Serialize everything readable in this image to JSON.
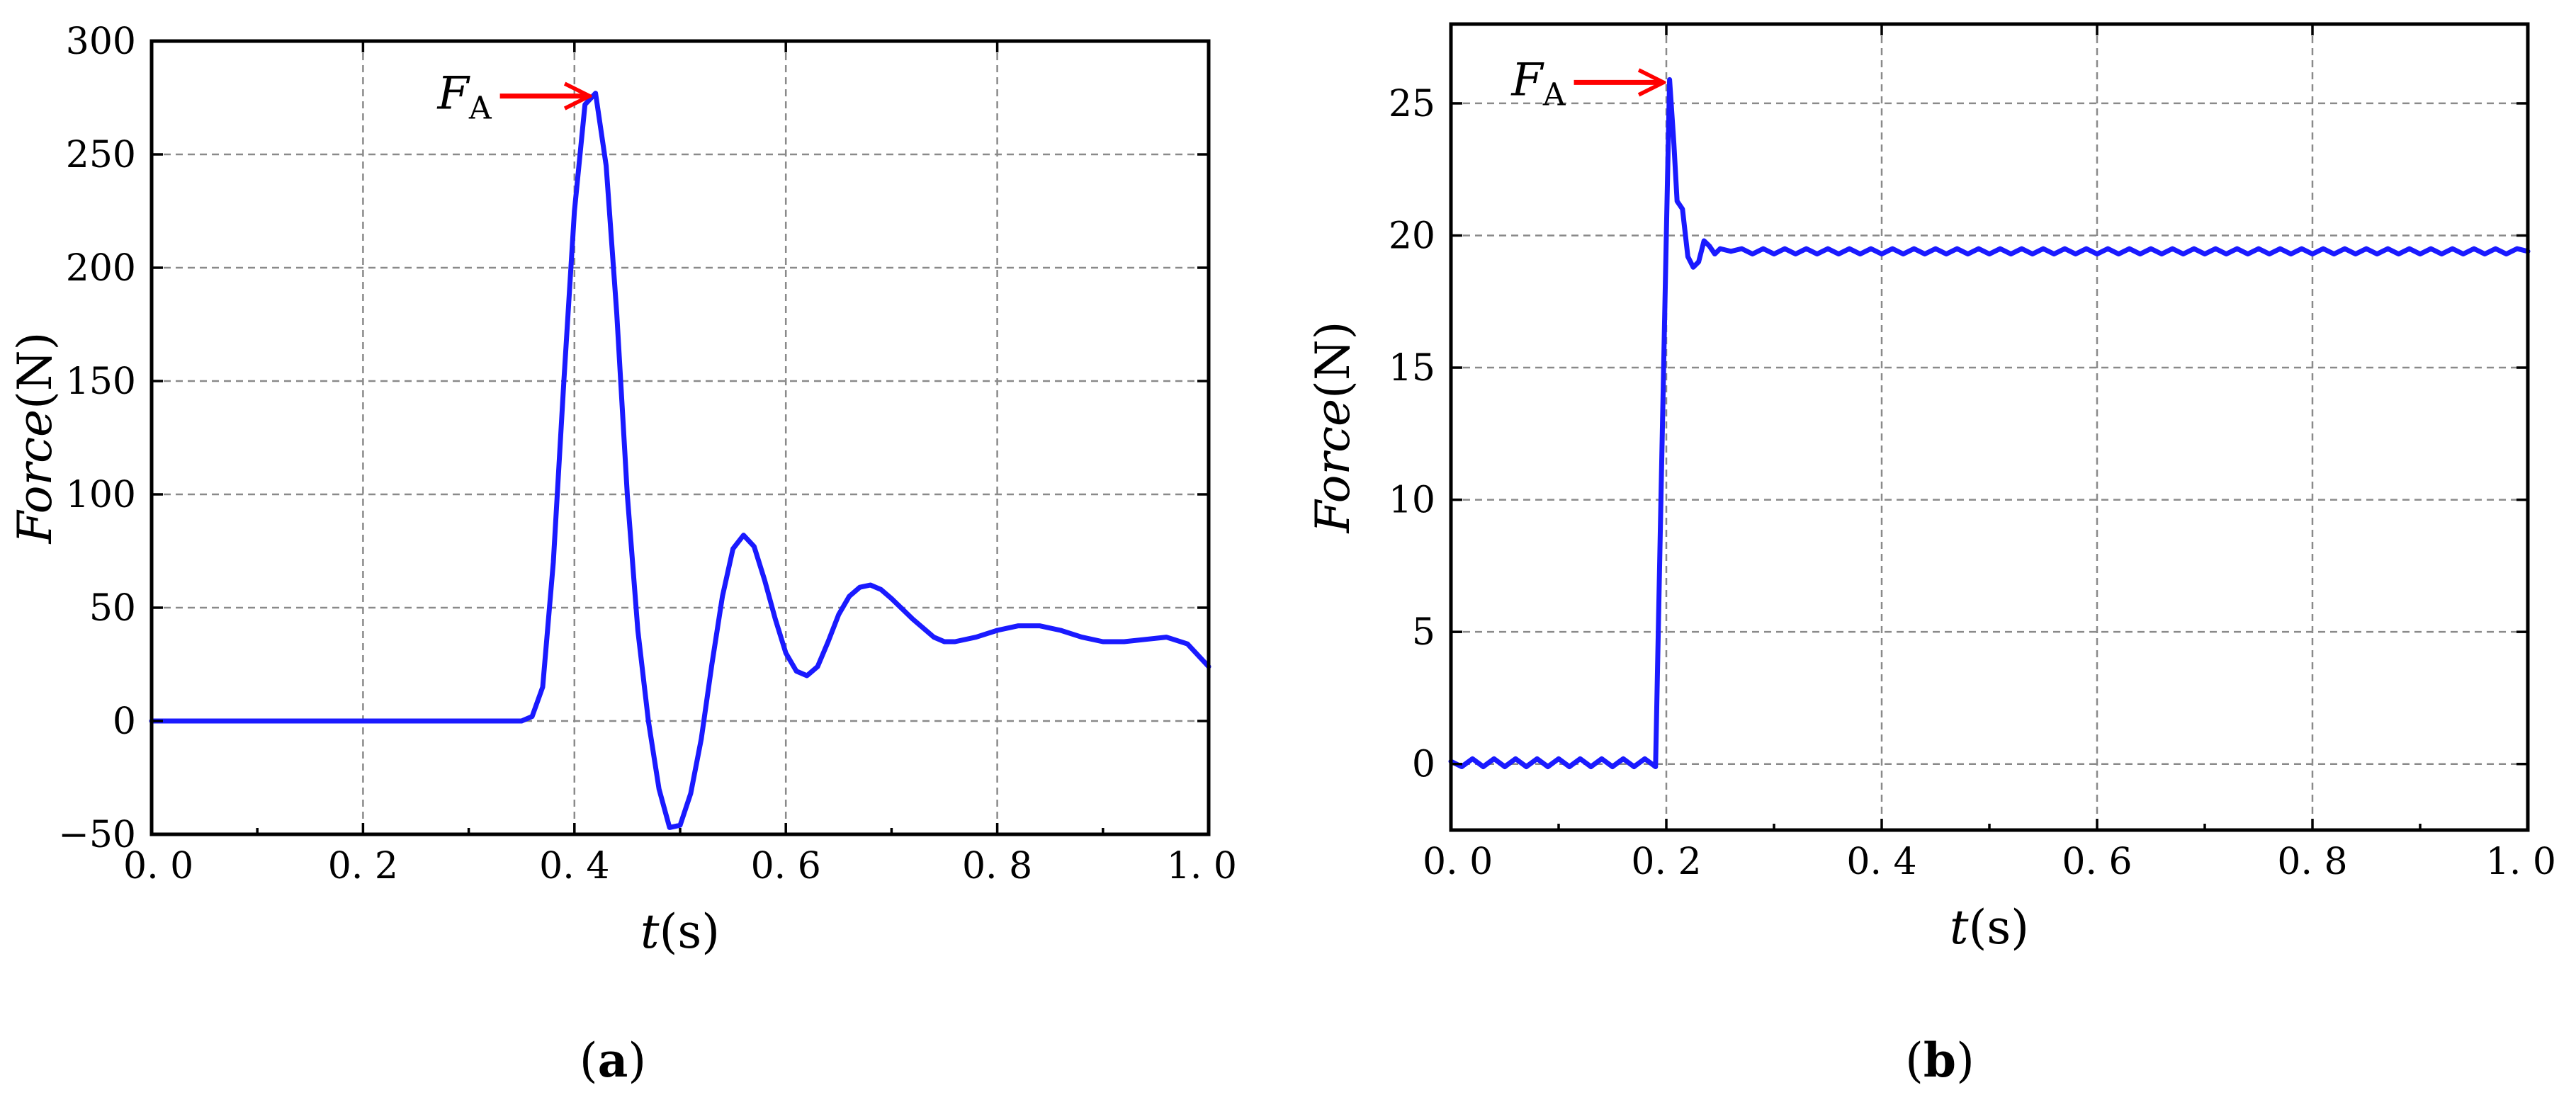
{
  "chart_data": [
    {
      "type": "line",
      "panel_label": "(a)",
      "xlabel": {
        "italic": "t",
        "unit": "(s)"
      },
      "ylabel": {
        "italic": "Force",
        "unit": "(N)"
      },
      "xlim": [
        0,
        1
      ],
      "ylim": [
        -50,
        300
      ],
      "xticks": [
        0,
        0.2,
        0.4,
        0.6,
        0.8,
        1.0
      ],
      "xtick_labels": [
        "0. 0",
        "0. 2",
        "0. 4",
        "0. 6",
        "0. 8",
        "1. 0"
      ],
      "yticks": [
        -50,
        0,
        50,
        100,
        150,
        200,
        250,
        300
      ],
      "ytick_labels": [
        "−50",
        "0",
        "50",
        "100",
        "150",
        "200",
        "250",
        "300"
      ],
      "grid": true,
      "annotation": {
        "text": "F",
        "subscript": "A",
        "x": 0.42,
        "y": 277
      },
      "series": [
        {
          "color": "#1a1aff",
          "x": [
            0,
            0.05,
            0.1,
            0.15,
            0.2,
            0.25,
            0.3,
            0.35,
            0.36,
            0.37,
            0.38,
            0.39,
            0.4,
            0.41,
            0.42,
            0.43,
            0.44,
            0.45,
            0.46,
            0.47,
            0.48,
            0.49,
            0.5,
            0.51,
            0.52,
            0.53,
            0.54,
            0.55,
            0.56,
            0.57,
            0.58,
            0.59,
            0.6,
            0.61,
            0.62,
            0.63,
            0.64,
            0.65,
            0.66,
            0.67,
            0.68,
            0.69,
            0.7,
            0.72,
            0.74,
            0.75,
            0.76,
            0.78,
            0.8,
            0.82,
            0.84,
            0.86,
            0.88,
            0.9,
            0.92,
            0.94,
            0.96,
            0.98,
            1.0
          ],
          "y": [
            0,
            0,
            0,
            0,
            0,
            0,
            0,
            0,
            2,
            15,
            70,
            150,
            225,
            272,
            277,
            245,
            180,
            100,
            40,
            0,
            -30,
            -47,
            -46,
            -32,
            -8,
            25,
            55,
            76,
            82,
            77,
            62,
            45,
            30,
            22,
            20,
            24,
            35,
            47,
            55,
            59,
            60,
            58,
            54,
            45,
            37,
            35,
            35,
            37,
            40,
            42,
            42,
            40,
            37,
            35,
            35,
            36,
            37,
            34,
            24
          ]
        }
      ]
    },
    {
      "type": "line",
      "panel_label": "(b)",
      "xlabel": {
        "italic": "t",
        "unit": "(s)"
      },
      "ylabel": {
        "italic": "Force",
        "unit": "(N)"
      },
      "xlim": [
        0,
        1
      ],
      "ylim": [
        -2.5,
        28
      ],
      "xticks": [
        0,
        0.2,
        0.4,
        0.6,
        0.8,
        1.0
      ],
      "xtick_labels": [
        "0. 0",
        "0. 2",
        "0. 4",
        "0. 6",
        "0. 8",
        "1. 0"
      ],
      "yticks": [
        0,
        5,
        10,
        15,
        20,
        25
      ],
      "ytick_labels": [
        "0",
        "5",
        "10",
        "15",
        "20",
        "25"
      ],
      "grid": true,
      "annotation": {
        "text": "F",
        "subscript": "A",
        "x": 0.203,
        "y": 25.9
      },
      "series": [
        {
          "color": "#1a1aff",
          "x": [
            0,
            0.01,
            0.02,
            0.03,
            0.04,
            0.05,
            0.06,
            0.07,
            0.08,
            0.09,
            0.1,
            0.11,
            0.12,
            0.13,
            0.14,
            0.15,
            0.16,
            0.17,
            0.18,
            0.19,
            0.195,
            0.2,
            0.203,
            0.207,
            0.21,
            0.215,
            0.22,
            0.225,
            0.23,
            0.235,
            0.24,
            0.245,
            0.25,
            0.26,
            0.27,
            0.28,
            0.29,
            0.3,
            0.31,
            0.32,
            0.33,
            0.34,
            0.35,
            0.36,
            0.37,
            0.38,
            0.39,
            0.4,
            0.41,
            0.42,
            0.43,
            0.44,
            0.45,
            0.46,
            0.47,
            0.48,
            0.49,
            0.5,
            0.51,
            0.52,
            0.53,
            0.54,
            0.55,
            0.56,
            0.57,
            0.58,
            0.59,
            0.6,
            0.61,
            0.62,
            0.63,
            0.64,
            0.65,
            0.66,
            0.67,
            0.68,
            0.69,
            0.7,
            0.71,
            0.72,
            0.73,
            0.74,
            0.75,
            0.76,
            0.77,
            0.78,
            0.79,
            0.8,
            0.81,
            0.82,
            0.83,
            0.84,
            0.85,
            0.86,
            0.87,
            0.88,
            0.89,
            0.9,
            0.91,
            0.92,
            0.93,
            0.94,
            0.95,
            0.96,
            0.97,
            0.98,
            0.99,
            1.0
          ],
          "y": [
            0.1,
            -0.1,
            0.2,
            -0.1,
            0.2,
            -0.1,
            0.2,
            -0.1,
            0.2,
            -0.1,
            0.2,
            -0.1,
            0.2,
            -0.1,
            0.2,
            -0.1,
            0.2,
            -0.1,
            0.2,
            -0.1,
            10,
            20,
            25.9,
            23.5,
            21.3,
            21.0,
            19.2,
            18.8,
            19.0,
            19.8,
            19.6,
            19.3,
            19.5,
            19.4,
            19.5,
            19.3,
            19.5,
            19.3,
            19.5,
            19.3,
            19.5,
            19.3,
            19.5,
            19.3,
            19.5,
            19.3,
            19.5,
            19.3,
            19.5,
            19.3,
            19.5,
            19.3,
            19.5,
            19.3,
            19.5,
            19.3,
            19.5,
            19.3,
            19.5,
            19.3,
            19.5,
            19.3,
            19.5,
            19.3,
            19.5,
            19.3,
            19.5,
            19.3,
            19.5,
            19.3,
            19.5,
            19.3,
            19.5,
            19.3,
            19.5,
            19.3,
            19.5,
            19.3,
            19.5,
            19.3,
            19.5,
            19.3,
            19.5,
            19.3,
            19.5,
            19.3,
            19.5,
            19.3,
            19.5,
            19.3,
            19.5,
            19.3,
            19.5,
            19.3,
            19.5,
            19.3,
            19.5,
            19.3,
            19.5,
            19.3,
            19.5,
            19.3,
            19.5,
            19.3,
            19.5,
            19.3,
            19.5,
            19.4
          ]
        }
      ]
    }
  ]
}
